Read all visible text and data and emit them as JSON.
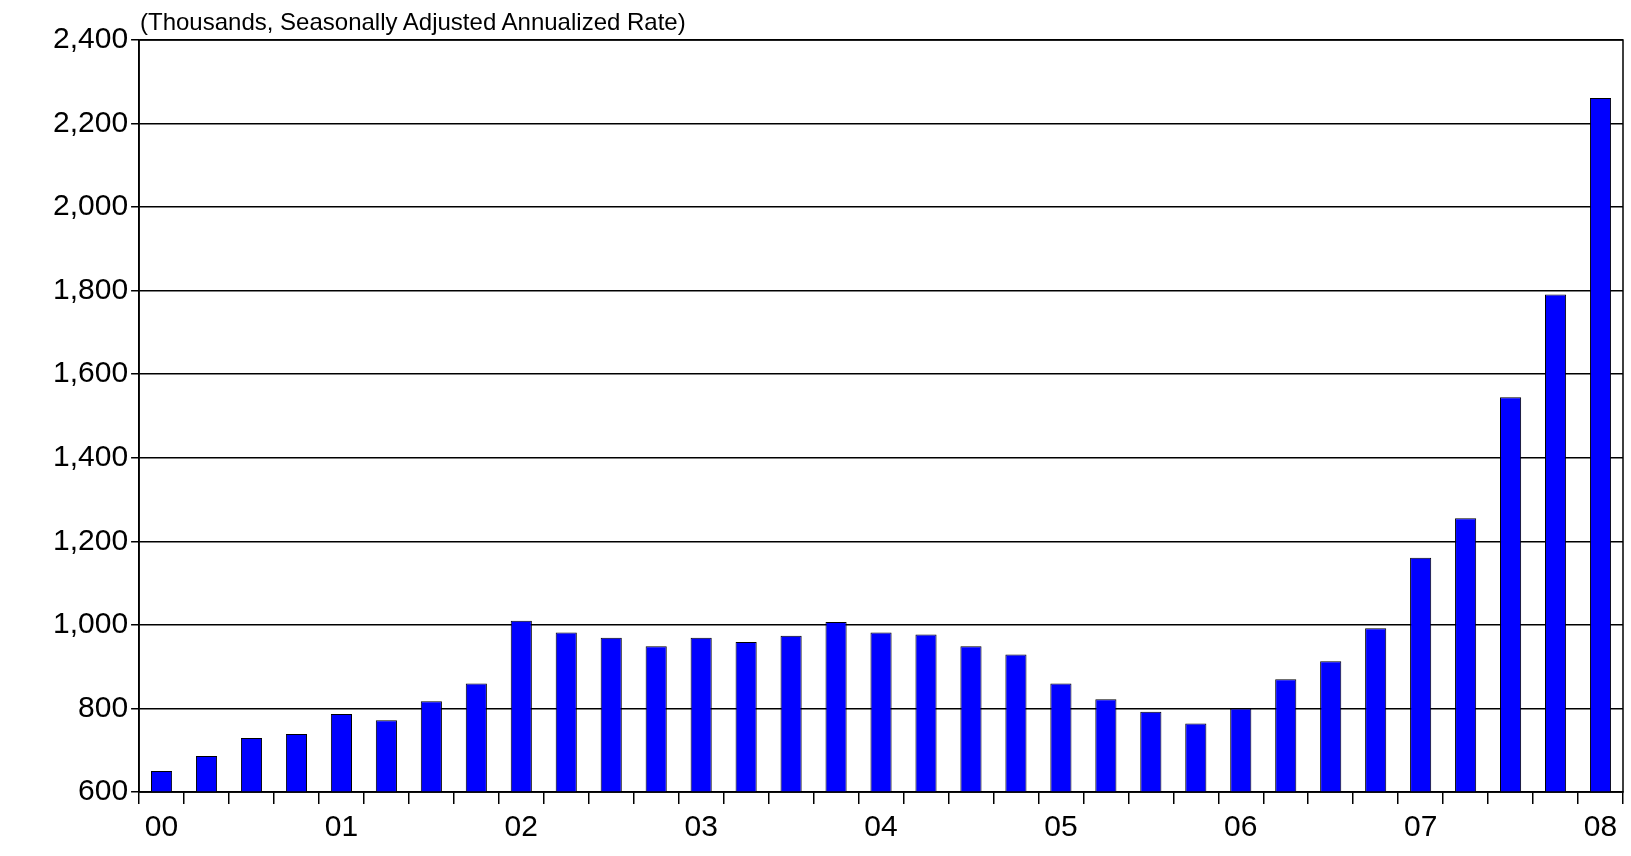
{
  "chart_data": {
    "type": "bar",
    "subtitle": "(Thousands, Seasonally Adjusted Annualized Rate)",
    "categories": [
      "00",
      null,
      null,
      null,
      "01",
      null,
      null,
      null,
      "02",
      null,
      null,
      null,
      "03",
      null,
      null,
      null,
      "04",
      null,
      null,
      null,
      "05",
      null,
      null,
      null,
      "06",
      null,
      null,
      null,
      "07",
      null,
      null,
      null,
      "08"
    ],
    "values": [
      650,
      686,
      729,
      739,
      787,
      772,
      817,
      860,
      1010,
      982,
      969,
      949,
      969,
      959,
      974,
      1007,
      982,
      977,
      949,
      929,
      860,
      822,
      792,
      764,
      800,
      870,
      913,
      992,
      1161,
      1255,
      1545,
      1791,
      2261
    ],
    "color": "#0000ff",
    "ylim": [
      600,
      2400
    ],
    "yticks": [
      600,
      800,
      {
        "value": 1000,
        "label": "1,000"
      },
      {
        "value": 1200,
        "label": "1,200"
      },
      {
        "value": 1400,
        "label": "1,400"
      },
      {
        "value": 1600,
        "label": "1,600"
      },
      {
        "value": 1800,
        "label": "1,800"
      },
      {
        "value": 2000,
        "label": "2,000"
      },
      {
        "value": 2200,
        "label": "2,200"
      },
      {
        "value": 2400,
        "label": "2,400"
      }
    ],
    "grid": "y"
  }
}
